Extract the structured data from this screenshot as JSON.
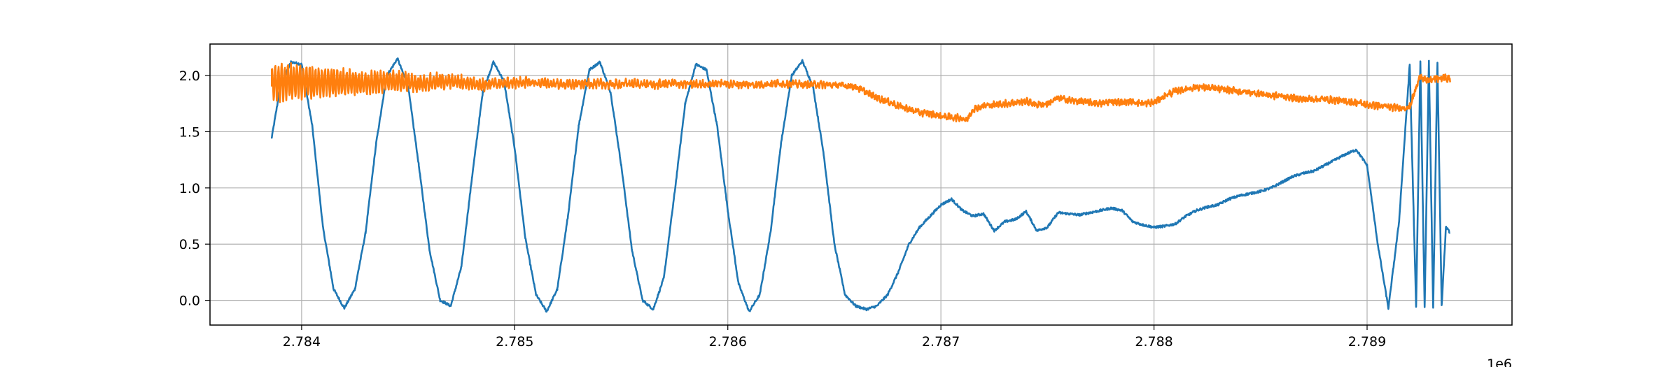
{
  "chart_data": {
    "type": "line",
    "title": "",
    "xlabel": "",
    "ylabel": "",
    "x_offset_label": "1e6",
    "xlim": [
      2783.57,
      2789.68
    ],
    "ylim": [
      -0.22,
      2.28
    ],
    "x_ticks": [
      2784,
      2785,
      2786,
      2787,
      2788,
      2789
    ],
    "x_tick_labels": [
      "2.784",
      "2.785",
      "2.786",
      "2.787",
      "2.788",
      "2.789"
    ],
    "y_ticks": [
      0.0,
      0.5,
      1.0,
      1.5,
      2.0
    ],
    "y_tick_labels": [
      "0.0",
      "0.5",
      "1.0",
      "1.5",
      "2.0"
    ],
    "grid": true,
    "legend": "none",
    "series": [
      {
        "color": "#1f77b4",
        "x": [
          2783.86,
          2783.9,
          2783.95,
          2784.0,
          2784.05,
          2784.1,
          2784.15,
          2784.2,
          2784.25,
          2784.3,
          2784.35,
          2784.4,
          2784.45,
          2784.5,
          2784.55,
          2784.6,
          2784.65,
          2784.7,
          2784.75,
          2784.8,
          2784.85,
          2784.9,
          2784.95,
          2785.0,
          2785.05,
          2785.1,
          2785.15,
          2785.2,
          2785.25,
          2785.3,
          2785.35,
          2785.4,
          2785.45,
          2785.5,
          2785.55,
          2785.6,
          2785.65,
          2785.7,
          2785.75,
          2785.8,
          2785.85,
          2785.9,
          2785.95,
          2786.0,
          2786.05,
          2786.1,
          2786.15,
          2786.2,
          2786.25,
          2786.3,
          2786.35,
          2786.4,
          2786.45,
          2786.5,
          2786.55,
          2786.6,
          2786.65,
          2786.7,
          2786.75,
          2786.8,
          2786.85,
          2786.9,
          2786.95,
          2787.0,
          2787.05,
          2787.1,
          2787.15,
          2787.2,
          2787.25,
          2787.3,
          2787.35,
          2787.4,
          2787.45,
          2787.5,
          2787.55,
          2787.6,
          2787.65,
          2787.7,
          2787.75,
          2787.8,
          2787.85,
          2787.9,
          2787.95,
          2788.0,
          2788.05,
          2788.1,
          2788.15,
          2788.2,
          2788.25,
          2788.3,
          2788.35,
          2788.4,
          2788.45,
          2788.5,
          2788.55,
          2788.6,
          2788.65,
          2788.7,
          2788.75,
          2788.8,
          2788.85,
          2788.9,
          2788.95,
          2789.0,
          2789.05,
          2789.1,
          2789.15,
          2789.2,
          2789.23,
          2789.25,
          2789.27,
          2789.29,
          2789.31,
          2789.33,
          2789.35,
          2789.37,
          2789.39
        ],
        "y": [
          1.45,
          1.9,
          2.12,
          2.1,
          1.55,
          0.65,
          0.1,
          -0.07,
          0.1,
          0.6,
          1.4,
          2.0,
          2.15,
          1.9,
          1.2,
          0.45,
          0.0,
          -0.05,
          0.3,
          1.1,
          1.85,
          2.12,
          1.95,
          1.35,
          0.55,
          0.05,
          -0.1,
          0.1,
          0.75,
          1.55,
          2.05,
          2.12,
          1.85,
          1.2,
          0.45,
          0.0,
          -0.08,
          0.2,
          0.95,
          1.75,
          2.1,
          2.05,
          1.55,
          0.8,
          0.15,
          -0.1,
          0.05,
          0.6,
          1.4,
          2.0,
          2.13,
          1.9,
          1.3,
          0.5,
          0.05,
          -0.05,
          -0.08,
          -0.05,
          0.05,
          0.25,
          0.5,
          0.65,
          0.75,
          0.85,
          0.9,
          0.8,
          0.75,
          0.77,
          0.62,
          0.7,
          0.72,
          0.79,
          0.62,
          0.65,
          0.78,
          0.77,
          0.76,
          0.78,
          0.8,
          0.82,
          0.8,
          0.7,
          0.67,
          0.65,
          0.66,
          0.68,
          0.75,
          0.8,
          0.83,
          0.85,
          0.9,
          0.93,
          0.95,
          0.97,
          1.0,
          1.05,
          1.1,
          1.13,
          1.15,
          1.2,
          1.25,
          1.3,
          1.34,
          1.2,
          0.5,
          -0.07,
          0.7,
          2.1,
          -0.06,
          2.12,
          -0.07,
          2.13,
          -0.07,
          2.12,
          -0.05,
          0.65,
          0.6
        ],
        "noise": 0.01
      },
      {
        "color": "#ff7f0e",
        "x": [
          2783.86,
          2783.95,
          2784.05,
          2784.15,
          2784.25,
          2784.35,
          2784.45,
          2784.55,
          2784.65,
          2784.75,
          2784.85,
          2784.95,
          2785.05,
          2785.15,
          2785.25,
          2785.35,
          2785.45,
          2785.55,
          2785.65,
          2785.75,
          2785.85,
          2785.95,
          2786.05,
          2786.15,
          2786.25,
          2786.35,
          2786.45,
          2786.55,
          2786.6,
          2786.65,
          2786.7,
          2786.75,
          2786.8,
          2786.85,
          2786.9,
          2786.95,
          2787.0,
          2787.05,
          2787.1,
          2787.12,
          2787.15,
          2787.2,
          2787.25,
          2787.3,
          2787.35,
          2787.4,
          2787.45,
          2787.5,
          2787.55,
          2787.6,
          2787.65,
          2787.7,
          2787.75,
          2787.8,
          2787.85,
          2787.9,
          2787.95,
          2788.0,
          2788.05,
          2788.1,
          2788.15,
          2788.2,
          2788.25,
          2788.3,
          2788.35,
          2788.4,
          2788.45,
          2788.5,
          2788.55,
          2788.6,
          2788.65,
          2788.7,
          2788.75,
          2788.8,
          2788.85,
          2788.9,
          2788.95,
          2789.0,
          2789.05,
          2789.1,
          2789.15,
          2789.2,
          2789.25,
          2789.28,
          2789.32,
          2789.36,
          2789.39
        ],
        "y": [
          1.92,
          1.95,
          1.94,
          1.95,
          1.93,
          1.94,
          1.95,
          1.93,
          1.95,
          1.94,
          1.92,
          1.93,
          1.94,
          1.93,
          1.92,
          1.93,
          1.92,
          1.93,
          1.92,
          1.93,
          1.92,
          1.93,
          1.92,
          1.92,
          1.93,
          1.92,
          1.92,
          1.91,
          1.9,
          1.85,
          1.8,
          1.77,
          1.73,
          1.7,
          1.67,
          1.66,
          1.64,
          1.63,
          1.62,
          1.6,
          1.7,
          1.73,
          1.74,
          1.75,
          1.76,
          1.77,
          1.74,
          1.75,
          1.8,
          1.78,
          1.77,
          1.76,
          1.75,
          1.77,
          1.76,
          1.77,
          1.75,
          1.76,
          1.82,
          1.86,
          1.88,
          1.9,
          1.89,
          1.88,
          1.87,
          1.86,
          1.85,
          1.84,
          1.82,
          1.82,
          1.8,
          1.79,
          1.79,
          1.79,
          1.78,
          1.77,
          1.76,
          1.74,
          1.73,
          1.72,
          1.71,
          1.72,
          2.0,
          1.95,
          1.97,
          1.98,
          1.97
        ],
        "osc": [
          [
            2783.86,
            0.16
          ],
          [
            2784.3,
            0.09
          ],
          [
            2784.6,
            0.06
          ],
          [
            2785.0,
            0.03
          ],
          [
            2786.6,
            0.01
          ],
          [
            2789.39,
            0.01
          ]
        ],
        "noise": 0.025
      }
    ]
  }
}
